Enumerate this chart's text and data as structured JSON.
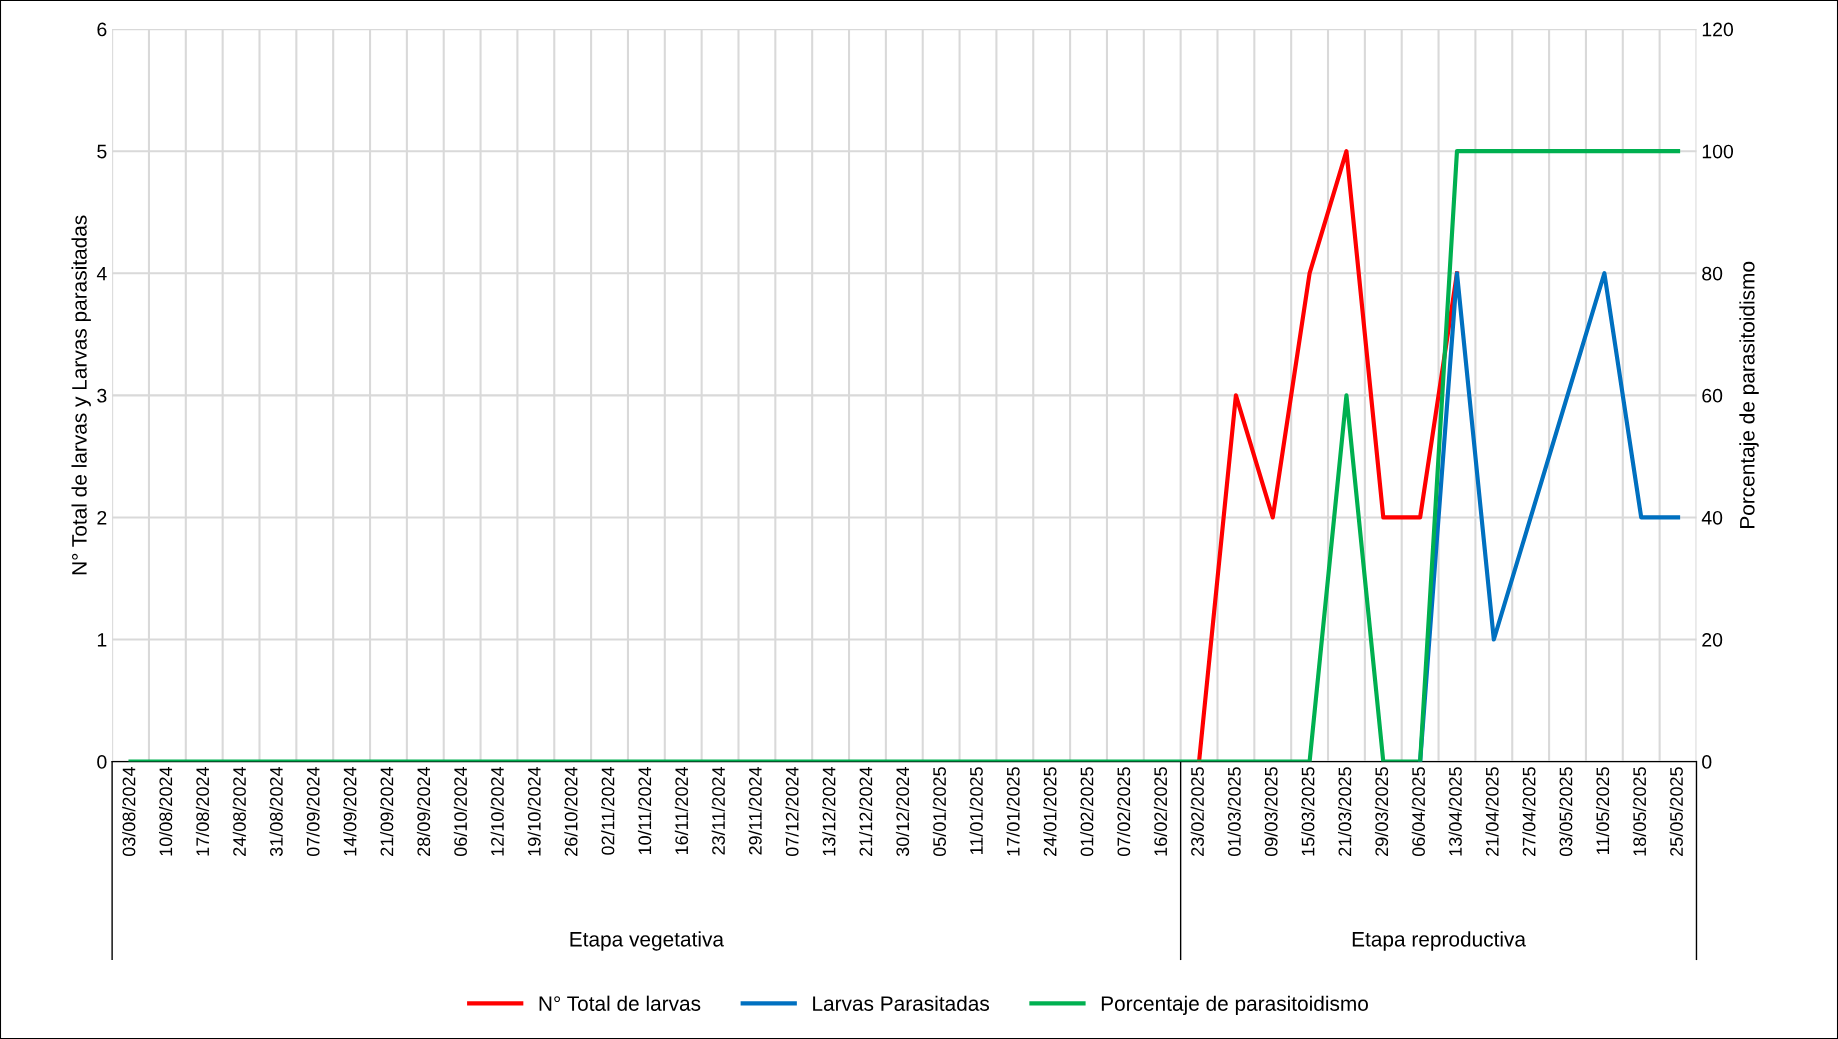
{
  "chart_data": {
    "type": "line",
    "categories": [
      "03/08/2024",
      "10/08/2024",
      "17/08/2024",
      "24/08/2024",
      "31/08/2024",
      "07/09/2024",
      "14/09/2024",
      "21/09/2024",
      "28/09/2024",
      "06/10/2024",
      "12/10/2024",
      "19/10/2024",
      "26/10/2024",
      "02/11/2024",
      "10/11/2024",
      "16/11/2024",
      "23/11/2024",
      "29/11/2024",
      "07/12/2024",
      "13/12/2024",
      "21/12/2024",
      "30/12/2024",
      "05/01/2025",
      "11/01/2025",
      "17/01/2025",
      "24/01/2025",
      "01/02/2025",
      "07/02/2025",
      "16/02/2025",
      "23/02/2025",
      "01/03/2025",
      "09/03/2025",
      "15/03/2025",
      "21/03/2025",
      "29/03/2025",
      "06/04/2025",
      "13/04/2025",
      "21/04/2025",
      "27/04/2025",
      "03/05/2025",
      "11/05/2025",
      "18/05/2025",
      "25/05/2025"
    ],
    "ylabel": "N° Total de larvas y Larvas parasitadas",
    "y2label": "Porcentaje de parasitoidismo",
    "ylim": [
      0,
      6
    ],
    "yticks": [
      0,
      1,
      2,
      3,
      4,
      5,
      6
    ],
    "y2lim": [
      0,
      120
    ],
    "y2ticks": [
      0,
      20,
      40,
      60,
      80,
      100,
      120
    ],
    "grid": true,
    "legend": "bottom",
    "marker": "none",
    "line_style": "solid",
    "annotations": [
      "Etapa vegetativa",
      "Etapa reproductiva"
    ],
    "series": [
      {
        "name": "N° Total de larvas",
        "color": "#ff0000",
        "values": [
          null,
          null,
          null,
          null,
          null,
          null,
          null,
          null,
          null,
          null,
          null,
          null,
          null,
          null,
          null,
          null,
          null,
          null,
          null,
          null,
          null,
          null,
          null,
          null,
          null,
          null,
          null,
          null,
          null,
          0,
          3,
          2,
          4,
          5,
          2,
          2,
          4,
          null,
          null,
          null,
          null,
          null,
          null
        ]
      },
      {
        "name": "Larvas Parasitadas",
        "color": "#0070c0",
        "values": [
          null,
          null,
          null,
          null,
          null,
          null,
          null,
          null,
          null,
          null,
          null,
          null,
          null,
          null,
          null,
          null,
          null,
          null,
          null,
          null,
          null,
          null,
          null,
          null,
          null,
          null,
          null,
          null,
          null,
          null,
          null,
          null,
          null,
          null,
          null,
          0,
          4,
          1,
          2,
          3,
          4,
          2,
          2
        ]
      },
      {
        "name": "Porcentaje de parasitoidismo",
        "color": "#00b050",
        "axis": "y2",
        "values": [
          0,
          0,
          0,
          0,
          0,
          0,
          0,
          0,
          0,
          0,
          0,
          0,
          0,
          0,
          0,
          0,
          0,
          0,
          0,
          0,
          0,
          0,
          0,
          0,
          0,
          0,
          0,
          0,
          0,
          0,
          0,
          0,
          0,
          60,
          0,
          0,
          100,
          100,
          100,
          100,
          100,
          100,
          100
        ]
      }
    ]
  }
}
